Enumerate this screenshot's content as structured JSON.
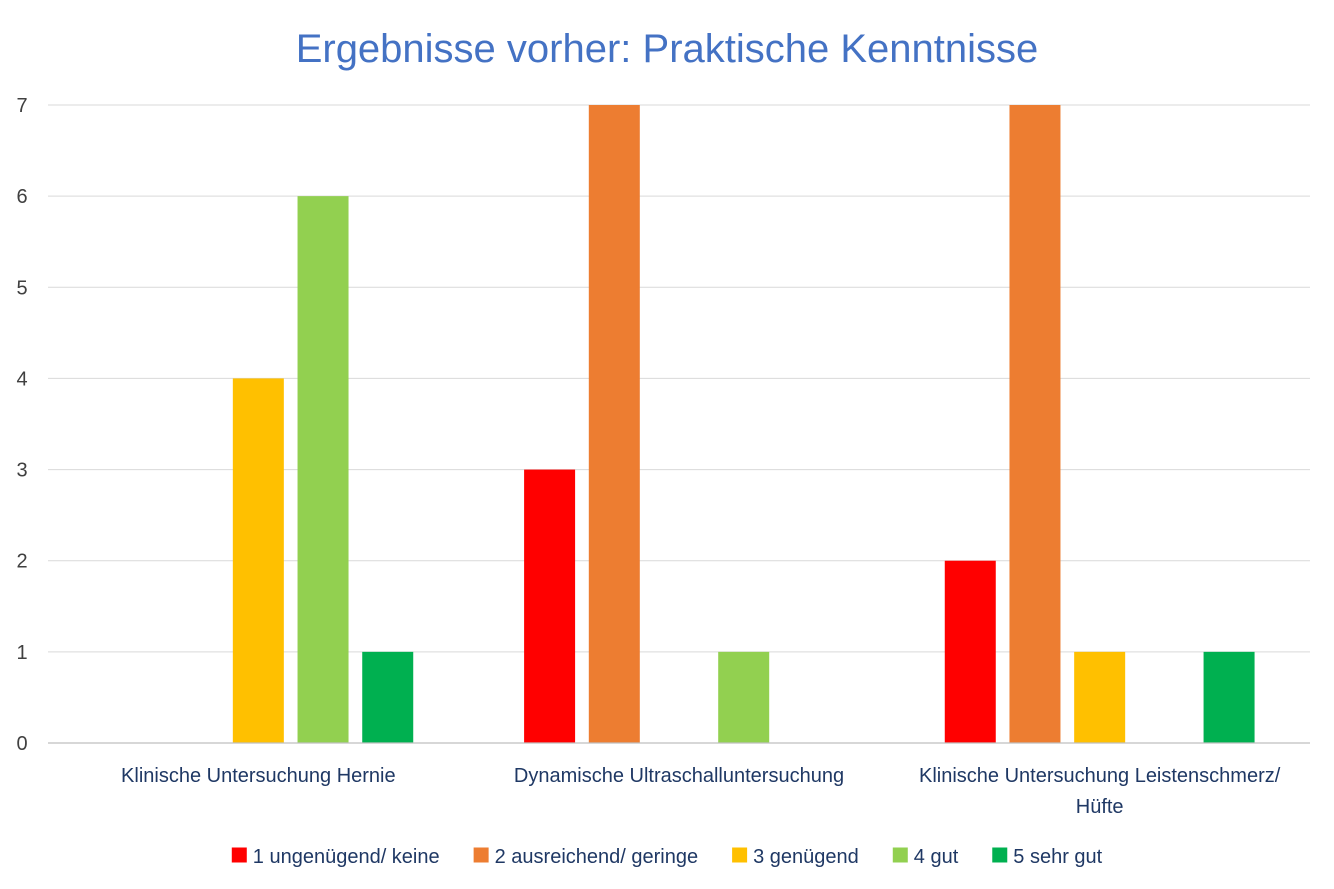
{
  "chart_data": {
    "type": "bar",
    "title": "Ergebnisse vorher: Praktische Kenntnisse",
    "xlabel": "",
    "ylabel": "",
    "ylim": [
      0,
      7
    ],
    "yticks": [
      "0",
      "1",
      "2",
      "3",
      "4",
      "5",
      "6",
      "7"
    ],
    "grid": true,
    "legend_position": "bottom",
    "categories": [
      [
        "Klinische Untersuchung Hernie"
      ],
      [
        "Dynamische Ultraschalluntersuchung"
      ],
      [
        "Klinische Untersuchung Leistenschmerz/",
        "Hüfte"
      ]
    ],
    "series": [
      {
        "name": "1 ungenügend/ keine",
        "color": "#FF0000",
        "values": [
          0,
          3,
          2
        ]
      },
      {
        "name": "2 ausreichend/ geringe",
        "color": "#ED7D31",
        "values": [
          0,
          7,
          7
        ]
      },
      {
        "name": "3 genügend",
        "color": "#FFC000",
        "values": [
          4,
          0,
          1
        ]
      },
      {
        "name": "4 gut",
        "color": "#92D050",
        "values": [
          6,
          1,
          0
        ]
      },
      {
        "name": "5 sehr gut",
        "color": "#00B050",
        "values": [
          1,
          0,
          1
        ]
      }
    ]
  }
}
